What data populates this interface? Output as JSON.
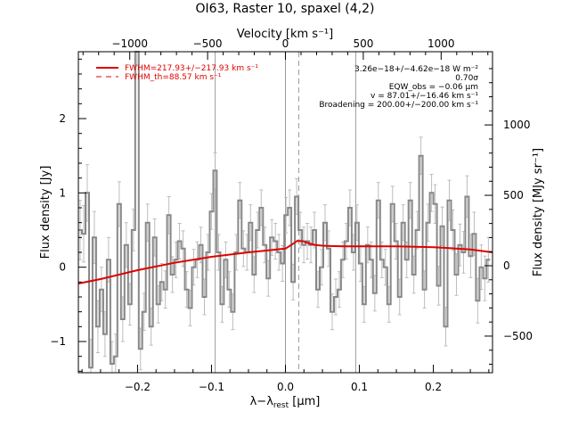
{
  "chart_data": {
    "type": "line",
    "title": "OI63, Raster 10, spaxel (4,2)",
    "xlabel": "λ−λ",
    "xlabel_sub": "rest",
    "xlabel_unit": " [μm]",
    "ylabel": "Flux density [Jy]",
    "top_axis_label": "Velocity [km s⁻¹]",
    "right_axis_label": "Flux density [MJy sr⁻¹]",
    "xlim": [
      -0.28,
      0.28
    ],
    "ylim": [
      -1.42,
      2.9
    ],
    "velocity_lim": [
      -1330,
      1330
    ],
    "right_ylim": [
      -760,
      1520
    ],
    "grid": false,
    "legend_position": "top-left",
    "x_ticks": [
      -0.2,
      -0.1,
      0.0,
      0.1,
      0.2
    ],
    "x_tick_labels": [
      "−0.2",
      "−0.1",
      "0.0",
      "0.1",
      "0.2"
    ],
    "y_ticks": [
      -1,
      0,
      1,
      2
    ],
    "y_tick_labels": [
      "−1",
      "0",
      "1",
      "2"
    ],
    "velocity_ticks": [
      -1000,
      -500,
      0,
      500,
      1000
    ],
    "velocity_tick_labels": [
      "−1000",
      "−500",
      "0",
      "500",
      "1000"
    ],
    "right_y_ticks": [
      -500,
      0,
      500,
      1000
    ],
    "right_y_tick_labels": [
      "−500",
      "0",
      "500",
      "1000"
    ],
    "vertical_lines": {
      "solid_x": [
        -0.095,
        0.0,
        0.095
      ],
      "dashed_x": [
        0.018
      ]
    },
    "legend": [
      {
        "label": "FWHM=217.93+/−217.93 km s⁻¹",
        "style": "solid",
        "color": "#e00000"
      },
      {
        "label": "FWHM_th=88.57 km s⁻¹",
        "style": "dashed",
        "color": "#e00000"
      }
    ],
    "annotations": [
      "3.26e−18+/−4.62e−18 W m⁻²",
      "0.70σ",
      "EQW_obs = −0.06 μm",
      "v = 87.01+/−16.46 km s⁻¹",
      "Broadening = 200.00+/−200.00 km s⁻¹"
    ],
    "series": [
      {
        "style": "steps",
        "color": "#888888",
        "x": [
          -0.2776,
          -0.2728,
          -0.268,
          -0.2632,
          -0.2584,
          -0.2536,
          -0.2488,
          -0.244,
          -0.2392,
          -0.2344,
          -0.2296,
          -0.2248,
          -0.22,
          -0.2152,
          -0.2104,
          -0.2056,
          -0.2008,
          -0.196,
          -0.1912,
          -0.1864,
          -0.1816,
          -0.1768,
          -0.172,
          -0.1672,
          -0.1624,
          -0.1576,
          -0.1528,
          -0.148,
          -0.1432,
          -0.1384,
          -0.1336,
          -0.1288,
          -0.124,
          -0.1192,
          -0.1144,
          -0.1096,
          -0.1048,
          -0.1,
          -0.0952,
          -0.0904,
          -0.0856,
          -0.0808,
          -0.076,
          -0.0712,
          -0.0664,
          -0.0616,
          -0.0568,
          -0.052,
          -0.0472,
          -0.0424,
          -0.0376,
          -0.0328,
          -0.028,
          -0.0232,
          -0.0184,
          -0.0136,
          -0.0088,
          -0.004,
          0.0008,
          0.0056,
          0.0104,
          0.0152,
          0.02,
          0.0248,
          0.0296,
          0.0344,
          0.0392,
          0.044,
          0.0488,
          0.0536,
          0.0584,
          0.0632,
          0.068,
          0.0728,
          0.0776,
          0.0824,
          0.0872,
          0.092,
          0.0968,
          0.1016,
          0.1064,
          0.1112,
          0.116,
          0.1208,
          0.1256,
          0.1304,
          0.1352,
          0.14,
          0.1448,
          0.1496,
          0.1544,
          0.1592,
          0.164,
          0.1688,
          0.1736,
          0.1784,
          0.1832,
          0.188,
          0.1928,
          0.1976,
          0.2024,
          0.2072,
          0.212,
          0.2168,
          0.2216,
          0.2264,
          0.2312,
          0.236,
          0.2408,
          0.2456,
          0.2504,
          0.2552,
          0.26,
          0.2648,
          0.2696,
          0.2744
        ],
        "values": [
          0.5,
          0.45,
          1.0,
          -1.35,
          0.4,
          -0.8,
          -0.3,
          -0.9,
          0.1,
          -1.3,
          -1.2,
          0.85,
          -0.7,
          0.3,
          -0.5,
          0.5,
          3.0,
          -1.1,
          -0.6,
          0.6,
          -0.8,
          0.4,
          -0.5,
          -0.2,
          -0.3,
          0.7,
          -0.1,
          0.1,
          0.35,
          0.25,
          -0.3,
          -0.55,
          0.0,
          0.1,
          0.3,
          -0.4,
          0.2,
          0.75,
          1.3,
          0.2,
          -0.5,
          0.1,
          -0.3,
          -0.6,
          0.2,
          0.9,
          0.25,
          0.2,
          0.6,
          -0.1,
          0.5,
          0.8,
          0.3,
          -0.15,
          0.4,
          0.35,
          0.2,
          0.05,
          0.7,
          0.8,
          -0.2,
          0.95,
          0.5,
          0.3,
          0.35,
          0.3,
          0.5,
          -0.3,
          0.0,
          0.6,
          0.25,
          -0.6,
          -0.4,
          -0.3,
          0.1,
          0.35,
          0.8,
          0.2,
          0.6,
          0.05,
          -0.5,
          0.3,
          0.1,
          -0.35,
          0.9,
          0.1,
          0.0,
          -0.5,
          0.85,
          0.35,
          -0.4,
          0.6,
          0.1,
          0.9,
          -0.1,
          0.5,
          1.5,
          -0.3,
          0.6,
          1.0,
          0.85,
          -0.25,
          0.55,
          -0.8,
          0.9,
          0.5,
          -0.1,
          0.3,
          0.2,
          0.95,
          0.15,
          0.45,
          -0.45,
          0.0,
          -0.15,
          0.1
        ],
        "errors": [
          0.4,
          0.38,
          0.38,
          0.38,
          0.35,
          0.35,
          0.3,
          0.3,
          0.3,
          0.3,
          0.3,
          0.3,
          0.3,
          0.3,
          0.28,
          0.28,
          0.28,
          0.28,
          0.25,
          0.25,
          0.25,
          0.25,
          0.25,
          0.25,
          0.25,
          0.25,
          0.24,
          0.24,
          0.24,
          0.24,
          0.24,
          0.24,
          0.24,
          0.24,
          0.24,
          0.24,
          0.24,
          0.24,
          0.24,
          0.24,
          0.24,
          0.24,
          0.24,
          0.24,
          0.24,
          0.24,
          0.24,
          0.24,
          0.24,
          0.24,
          0.24,
          0.24,
          0.24,
          0.24,
          0.24,
          0.24,
          0.24,
          0.24,
          0.24,
          0.24,
          0.24,
          0.24,
          0.24,
          0.24,
          0.24,
          0.24,
          0.24,
          0.24,
          0.24,
          0.24,
          0.24,
          0.24,
          0.24,
          0.24,
          0.24,
          0.24,
          0.24,
          0.24,
          0.24,
          0.24,
          0.24,
          0.24,
          0.24,
          0.24,
          0.24,
          0.24,
          0.24,
          0.24,
          0.24,
          0.24,
          0.24,
          0.24,
          0.24,
          0.24,
          0.25,
          0.25,
          0.25,
          0.25,
          0.25,
          0.25,
          0.26,
          0.26,
          0.26,
          0.26,
          0.27,
          0.27,
          0.28,
          0.28,
          0.28,
          0.28,
          0.29,
          0.29,
          0.3,
          0.3,
          0.3,
          0.3
        ]
      },
      {
        "style": "line",
        "color": "#e00000",
        "x": [
          -0.28,
          -0.25,
          -0.2,
          -0.15,
          -0.1,
          -0.05,
          -0.02,
          0.0,
          0.008,
          0.016,
          0.024,
          0.032,
          0.04,
          0.05,
          0.06,
          0.08,
          0.1,
          0.15,
          0.2,
          0.25,
          0.28
        ],
        "values": [
          -0.22,
          -0.16,
          -0.04,
          0.06,
          0.14,
          0.2,
          0.23,
          0.25,
          0.3,
          0.355,
          0.35,
          0.32,
          0.3,
          0.29,
          0.285,
          0.28,
          0.28,
          0.28,
          0.27,
          0.24,
          0.2
        ]
      }
    ]
  }
}
